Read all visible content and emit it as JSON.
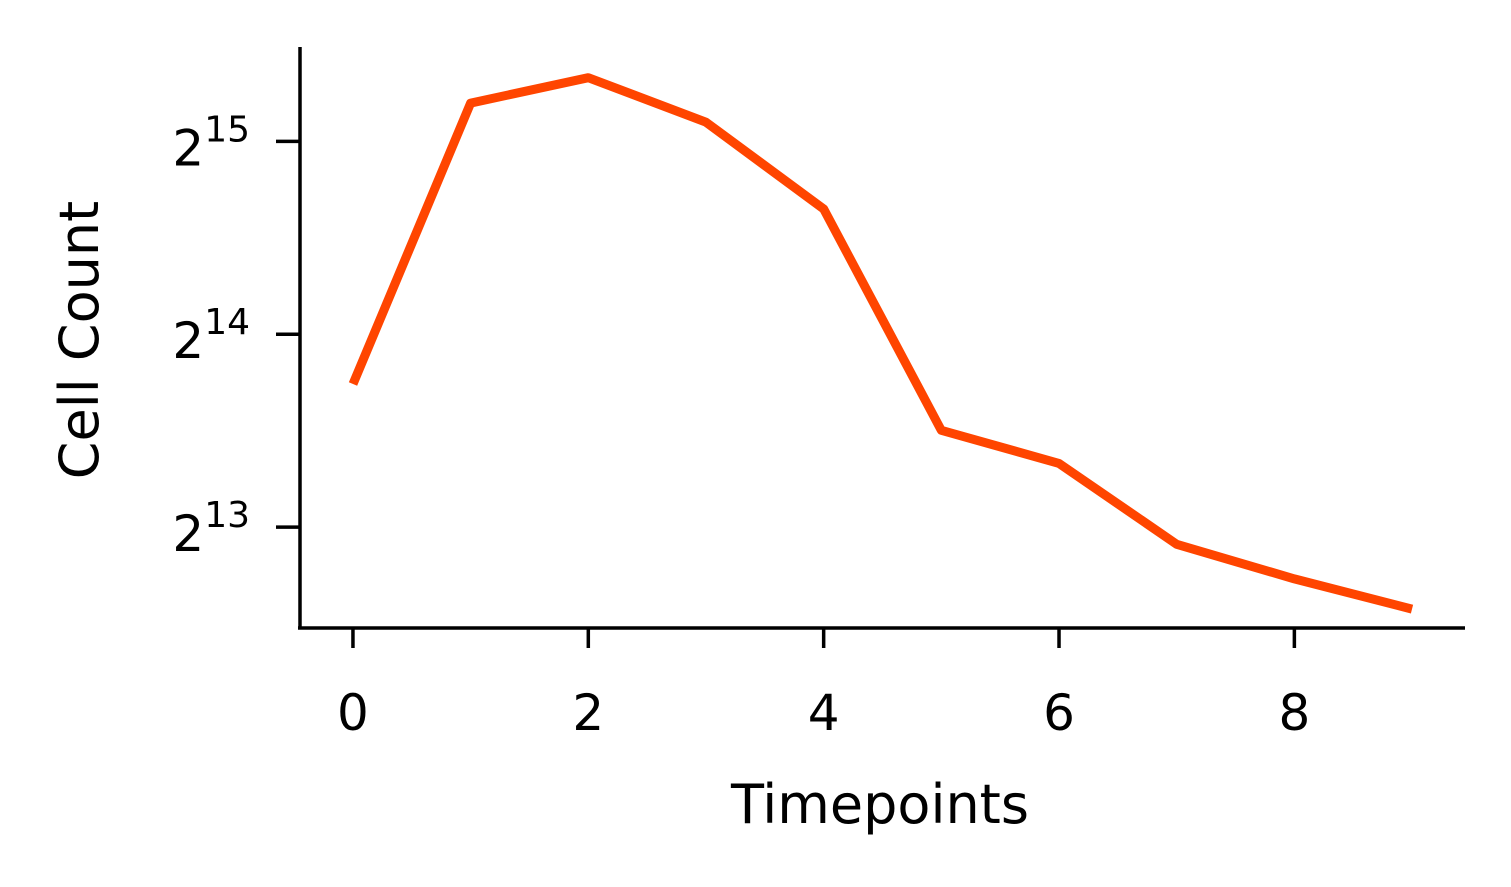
{
  "chart_data": {
    "type": "line",
    "title": "",
    "xlabel": "Timepoints",
    "ylabel": "Cell Count",
    "x": [
      0,
      1,
      2,
      3,
      4,
      5,
      6,
      7,
      8,
      9
    ],
    "series": [
      {
        "values": [
          13700,
          37600,
          41200,
          35100,
          25700,
          11600,
          10300,
          7700,
          6800,
          6100
        ],
        "color": "#ff4500"
      }
    ],
    "yscale": "log2",
    "xlim": [
      -0.45,
      9.45
    ],
    "ylim": [
      5700,
      46000
    ],
    "xticks": [
      0,
      2,
      4,
      6,
      8
    ],
    "xtick_labels": [
      "0",
      "2",
      "4",
      "6",
      "8"
    ],
    "yticks": [
      8192,
      16384,
      32768
    ],
    "ytick_labels": [
      {
        "base": "2",
        "exp": "13"
      },
      {
        "base": "2",
        "exp": "14"
      },
      {
        "base": "2",
        "exp": "15"
      }
    ],
    "grid": false,
    "legend": "none"
  }
}
